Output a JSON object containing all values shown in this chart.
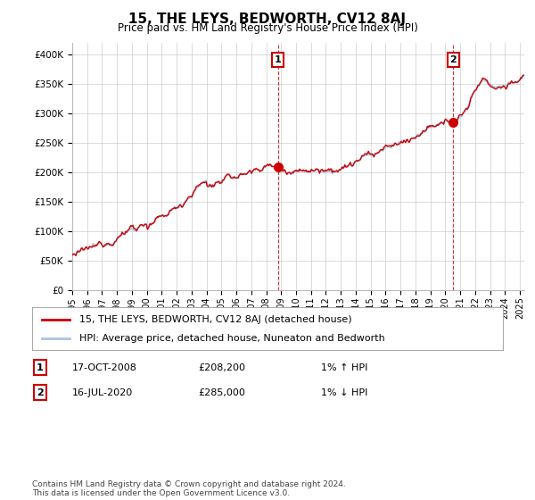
{
  "title": "15, THE LEYS, BEDWORTH, CV12 8AJ",
  "subtitle": "Price paid vs. HM Land Registry's House Price Index (HPI)",
  "legend_line1": "15, THE LEYS, BEDWORTH, CV12 8AJ (detached house)",
  "legend_line2": "HPI: Average price, detached house, Nuneaton and Bedworth",
  "annotation1_label": "1",
  "annotation1_date": "17-OCT-2008",
  "annotation1_price": "£208,200",
  "annotation1_hpi": "1% ↑ HPI",
  "annotation2_label": "2",
  "annotation2_date": "16-JUL-2020",
  "annotation2_price": "£285,000",
  "annotation2_hpi": "1% ↓ HPI",
  "footer": "Contains HM Land Registry data © Crown copyright and database right 2024.\nThis data is licensed under the Open Government Licence v3.0.",
  "hpi_color": "#aac4e0",
  "sale_color": "#cc0000",
  "fill_color": "#ddeeff",
  "background_color": "#ffffff",
  "grid_color": "#cccccc",
  "ylim_min": 0,
  "ylim_max": 420000,
  "yticks": [
    0,
    50000,
    100000,
    150000,
    200000,
    250000,
    300000,
    350000,
    400000
  ],
  "sale1_x": 2008.79,
  "sale1_y": 208200,
  "sale2_x": 2020.54,
  "sale2_y": 285000,
  "xmin": 1995,
  "xmax": 2025.3
}
